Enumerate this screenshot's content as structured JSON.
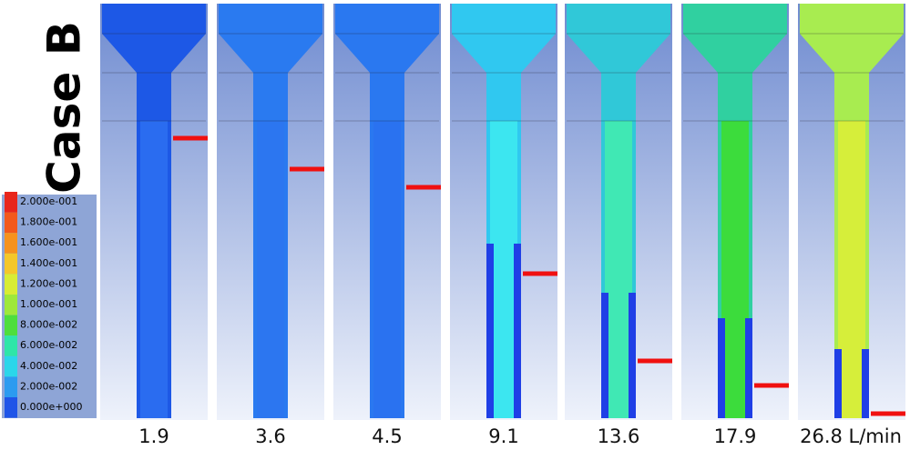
{
  "title": "Case B",
  "legend": {
    "labels": [
      "2.000e-001",
      "1.800e-001",
      "1.600e-001",
      "1.400e-001",
      "1.200e-001",
      "1.000e-001",
      "8.000e-002",
      "6.000e-002",
      "4.000e-002",
      "2.000e-002",
      "0.000e+000"
    ]
  },
  "panels": [
    {
      "label": "1.9"
    },
    {
      "label": "3.6"
    },
    {
      "label": "4.5"
    },
    {
      "label": "9.1"
    },
    {
      "label": "13.6"
    },
    {
      "label": "17.9"
    },
    {
      "label": "26.8 L/min"
    }
  ]
}
